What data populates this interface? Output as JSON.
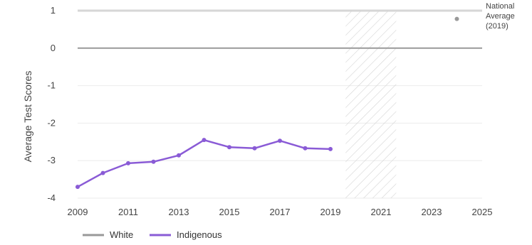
{
  "chart_data": {
    "type": "line",
    "title": "",
    "xlabel": "",
    "ylabel": "Average Test Scores",
    "xlim": [
      2009,
      2025
    ],
    "ylim": [
      -4,
      1
    ],
    "x_ticks": [
      "2009",
      "2011",
      "2013",
      "2015",
      "2017",
      "2019",
      "2021",
      "2023",
      "2025"
    ],
    "y_ticks": [
      "1",
      "0",
      "-1",
      "-2",
      "-3",
      "-4"
    ],
    "grid": "horizontal",
    "shaded_band": {
      "x_start": 2019.6,
      "x_end": 2021.6,
      "pattern": "diagonal-hatch"
    },
    "series": [
      {
        "name": "White",
        "color": "#999999",
        "x": [
          2009,
          2025
        ],
        "y": [
          0,
          0
        ]
      },
      {
        "name": "Indigenous",
        "color": "#8a5bd6",
        "x": [
          2009,
          2010,
          2011,
          2012,
          2013,
          2014,
          2015,
          2016,
          2017,
          2018,
          2019
        ],
        "y": [
          -3.7,
          -3.33,
          -3.07,
          -3.03,
          -2.86,
          -2.45,
          -2.64,
          -2.67,
          -2.47,
          -2.67,
          -2.69
        ]
      }
    ],
    "annotations": [
      {
        "label": [
          "National",
          "Average",
          "(2019)"
        ],
        "x": 2024,
        "y": 0.78,
        "color": "#999999"
      }
    ],
    "legend": {
      "placement": "bottom-left",
      "items": [
        "White",
        "Indigenous"
      ]
    }
  }
}
